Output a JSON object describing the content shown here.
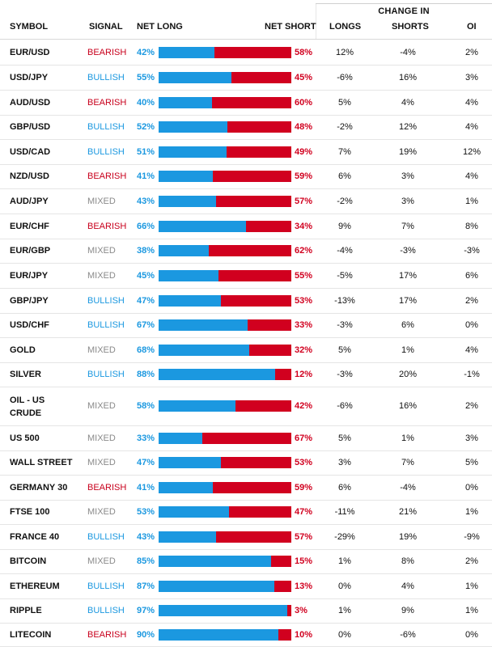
{
  "header": {
    "symbol": "SYMBOL",
    "signal": "SIGNAL",
    "net_long": "NET LONG",
    "net_short": "NET SHORT",
    "change_in": "CHANGE IN",
    "longs": "LONGS",
    "shorts": "SHORTS",
    "oi": "OI"
  },
  "colors": {
    "long": "#1b98e0",
    "short": "#d1001f",
    "bullish": "#1b98e0",
    "bearish": "#c8001c",
    "mixed": "#8a8a8a"
  },
  "rows": [
    {
      "symbol": "EUR/USD",
      "signal": "BEARISH",
      "net_long": "42%",
      "net_short": "58%",
      "long_fraction": 0.42,
      "longs": "12%",
      "shorts": "-4%",
      "oi": "2%"
    },
    {
      "symbol": "USD/JPY",
      "signal": "BULLISH",
      "net_long": "55%",
      "net_short": "45%",
      "long_fraction": 0.55,
      "longs": "-6%",
      "shorts": "16%",
      "oi": "3%"
    },
    {
      "symbol": "AUD/USD",
      "signal": "BEARISH",
      "net_long": "40%",
      "net_short": "60%",
      "long_fraction": 0.4,
      "longs": "5%",
      "shorts": "4%",
      "oi": "4%"
    },
    {
      "symbol": "GBP/USD",
      "signal": "BULLISH",
      "net_long": "52%",
      "net_short": "48%",
      "long_fraction": 0.52,
      "longs": "-2%",
      "shorts": "12%",
      "oi": "4%"
    },
    {
      "symbol": "USD/CAD",
      "signal": "BULLISH",
      "net_long": "51%",
      "net_short": "49%",
      "long_fraction": 0.51,
      "longs": "7%",
      "shorts": "19%",
      "oi": "12%"
    },
    {
      "symbol": "NZD/USD",
      "signal": "BEARISH",
      "net_long": "41%",
      "net_short": "59%",
      "long_fraction": 0.41,
      "longs": "6%",
      "shorts": "3%",
      "oi": "4%"
    },
    {
      "symbol": "AUD/JPY",
      "signal": "MIXED",
      "net_long": "43%",
      "net_short": "57%",
      "long_fraction": 0.43,
      "longs": "-2%",
      "shorts": "3%",
      "oi": "1%"
    },
    {
      "symbol": "EUR/CHF",
      "signal": "BEARISH",
      "net_long": "66%",
      "net_short": "34%",
      "long_fraction": 0.66,
      "longs": "9%",
      "shorts": "7%",
      "oi": "8%"
    },
    {
      "symbol": "EUR/GBP",
      "signal": "MIXED",
      "net_long": "38%",
      "net_short": "62%",
      "long_fraction": 0.38,
      "longs": "-4%",
      "shorts": "-3%",
      "oi": "-3%"
    },
    {
      "symbol": "EUR/JPY",
      "signal": "MIXED",
      "net_long": "45%",
      "net_short": "55%",
      "long_fraction": 0.45,
      "longs": "-5%",
      "shorts": "17%",
      "oi": "6%"
    },
    {
      "symbol": "GBP/JPY",
      "signal": "BULLISH",
      "net_long": "47%",
      "net_short": "53%",
      "long_fraction": 0.47,
      "longs": "-13%",
      "shorts": "17%",
      "oi": "2%"
    },
    {
      "symbol": "USD/CHF",
      "signal": "BULLISH",
      "net_long": "67%",
      "net_short": "33%",
      "long_fraction": 0.67,
      "longs": "-3%",
      "shorts": "6%",
      "oi": "0%"
    },
    {
      "symbol": "GOLD",
      "signal": "MIXED",
      "net_long": "68%",
      "net_short": "32%",
      "long_fraction": 0.68,
      "longs": "5%",
      "shorts": "1%",
      "oi": "4%"
    },
    {
      "symbol": "SILVER",
      "signal": "BULLISH",
      "net_long": "88%",
      "net_short": "12%",
      "long_fraction": 0.88,
      "longs": "-3%",
      "shorts": "20%",
      "oi": "-1%"
    },
    {
      "symbol": "OIL - US CRUDE",
      "signal": "MIXED",
      "net_long": "58%",
      "net_short": "42%",
      "long_fraction": 0.58,
      "longs": "-6%",
      "shorts": "16%",
      "oi": "2%"
    },
    {
      "symbol": "US 500",
      "signal": "MIXED",
      "net_long": "33%",
      "net_short": "67%",
      "long_fraction": 0.33,
      "longs": "5%",
      "shorts": "1%",
      "oi": "3%"
    },
    {
      "symbol": "WALL STREET",
      "signal": "MIXED",
      "net_long": "47%",
      "net_short": "53%",
      "long_fraction": 0.47,
      "longs": "3%",
      "shorts": "7%",
      "oi": "5%"
    },
    {
      "symbol": "GERMANY 30",
      "signal": "BEARISH",
      "net_long": "41%",
      "net_short": "59%",
      "long_fraction": 0.41,
      "longs": "6%",
      "shorts": "-4%",
      "oi": "0%"
    },
    {
      "symbol": "FTSE 100",
      "signal": "MIXED",
      "net_long": "53%",
      "net_short": "47%",
      "long_fraction": 0.53,
      "longs": "-11%",
      "shorts": "21%",
      "oi": "1%"
    },
    {
      "symbol": "FRANCE 40",
      "signal": "BULLISH",
      "net_long": "43%",
      "net_short": "57%",
      "long_fraction": 0.43,
      "longs": "-29%",
      "shorts": "19%",
      "oi": "-9%"
    },
    {
      "symbol": "BITCOIN",
      "signal": "MIXED",
      "net_long": "85%",
      "net_short": "15%",
      "long_fraction": 0.85,
      "longs": "1%",
      "shorts": "8%",
      "oi": "2%"
    },
    {
      "symbol": "ETHEREUM",
      "signal": "BULLISH",
      "net_long": "87%",
      "net_short": "13%",
      "long_fraction": 0.87,
      "longs": "0%",
      "shorts": "4%",
      "oi": "1%"
    },
    {
      "symbol": "RIPPLE",
      "signal": "BULLISH",
      "net_long": "97%",
      "net_short": "3%",
      "long_fraction": 0.97,
      "longs": "1%",
      "shorts": "9%",
      "oi": "1%"
    },
    {
      "symbol": "LITECOIN",
      "signal": "BEARISH",
      "net_long": "90%",
      "net_short": "10%",
      "long_fraction": 0.9,
      "longs": "0%",
      "shorts": "-6%",
      "oi": "0%"
    }
  ]
}
